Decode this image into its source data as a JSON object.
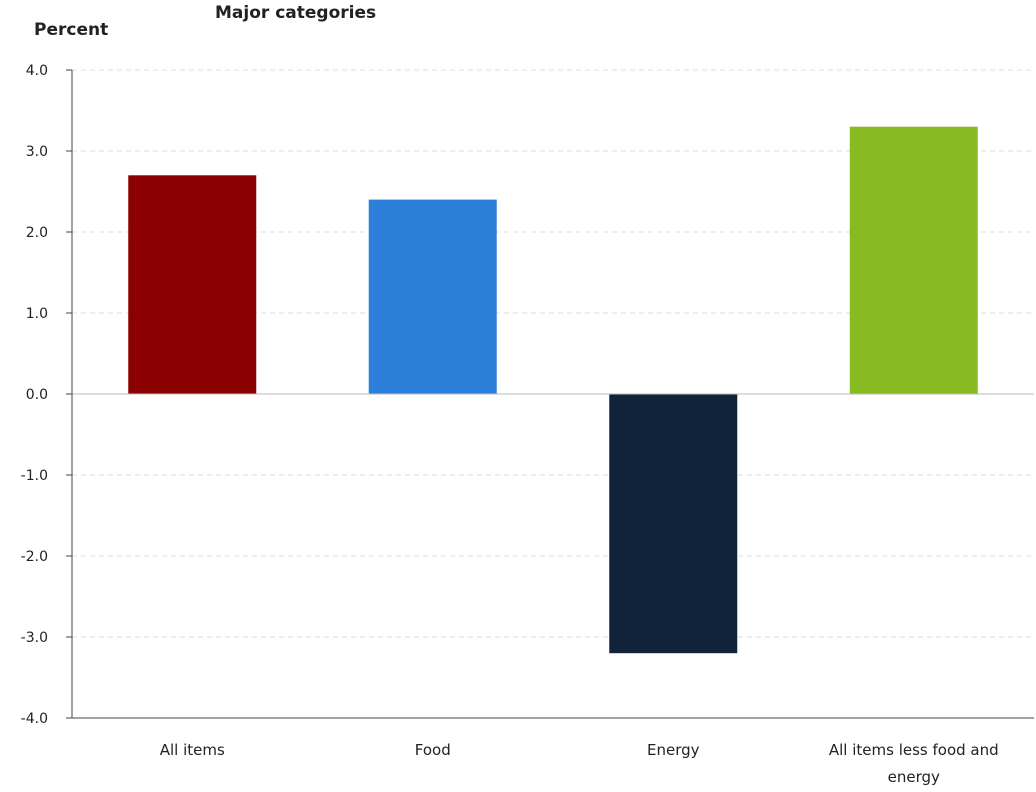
{
  "chart_data": {
    "type": "bar",
    "title": "Major categories",
    "ylabel": "Percent",
    "categories": [
      "All items",
      "Food",
      "Energy",
      "All items less food and energy"
    ],
    "category_label_lines": [
      [
        "All items"
      ],
      [
        "Food"
      ],
      [
        "Energy"
      ],
      [
        "All items less food and",
        "energy"
      ]
    ],
    "values": [
      2.7,
      2.4,
      -3.2,
      3.3
    ],
    "colors": [
      "#8b0000",
      "#2e7fd9",
      "#10233a",
      "#88bb22"
    ],
    "ylim": [
      -4.0,
      4.0
    ],
    "yticks": [
      "4.0",
      "3.0",
      "2.0",
      "1.0",
      "0.0",
      "-1.0",
      "-2.0",
      "-3.0",
      "-4.0"
    ],
    "grid": true,
    "legend": false
  }
}
